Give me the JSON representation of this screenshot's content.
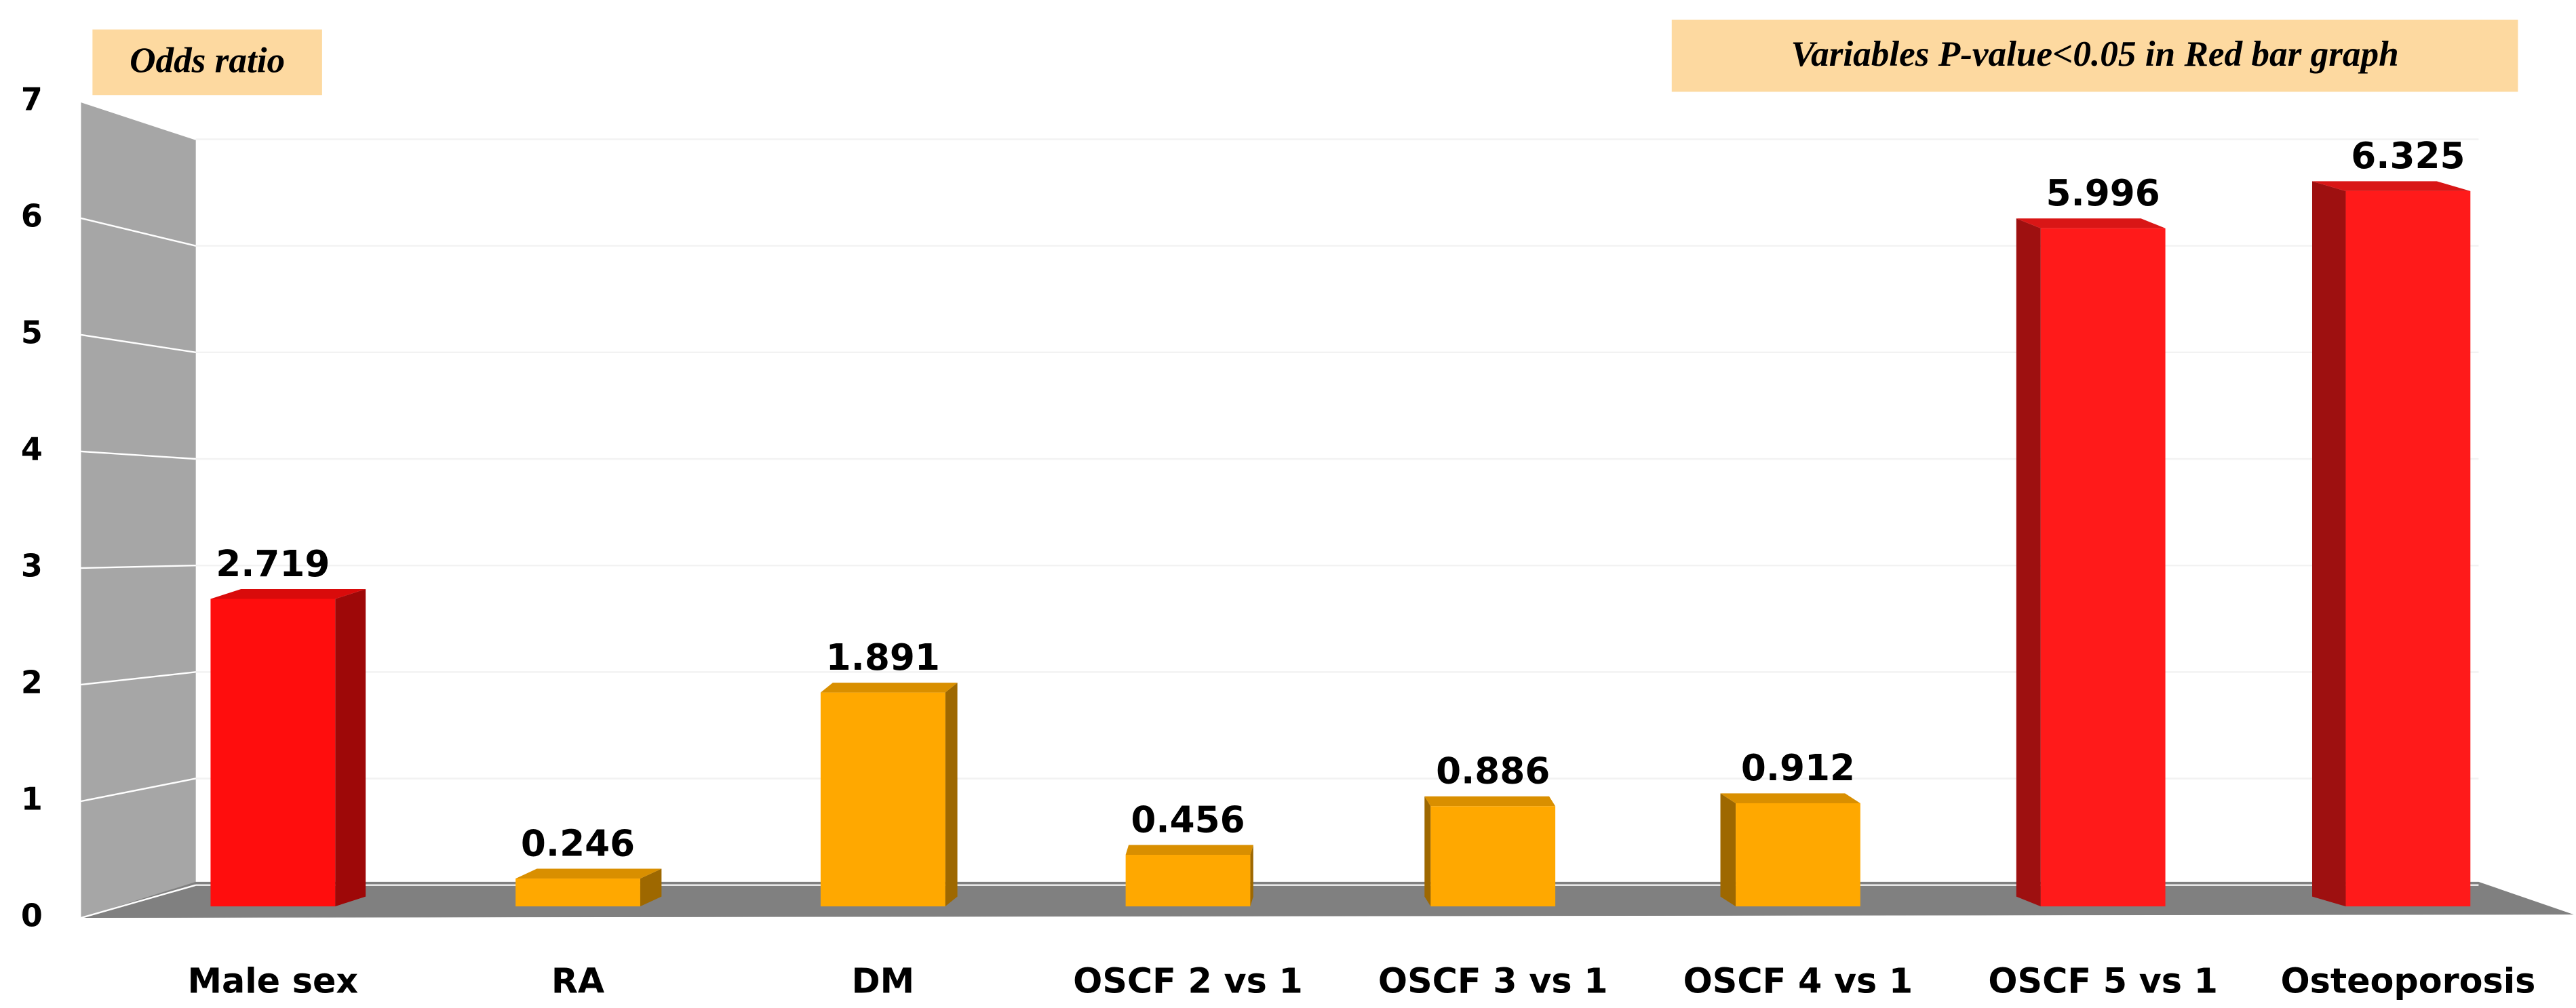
{
  "chart_data": {
    "type": "bar3d",
    "annotations": [
      "Odds ratio",
      "Variables  P-value<0.05  in Red bar graph"
    ],
    "categories": [
      "Male sex",
      "RA",
      "DM",
      "OSCF 2 vs 1",
      "OSCF 3 vs 1",
      "OSCF 4 vs 1",
      "OSCF 5 vs 1",
      "Osteoporosis"
    ],
    "values": [
      2.719,
      0.246,
      1.891,
      0.456,
      0.886,
      0.912,
      5.996,
      6.325
    ],
    "colors": [
      "#ff0d0d",
      "#ffa800",
      "#ffa800",
      "#ffa800",
      "#ffa800",
      "#ffa800",
      "#ff1a1a",
      "#ff1a1a"
    ],
    "ylim": [
      0,
      7
    ],
    "yticks": [
      0,
      1,
      2,
      3,
      4,
      5,
      6,
      7
    ],
    "grid": true
  }
}
